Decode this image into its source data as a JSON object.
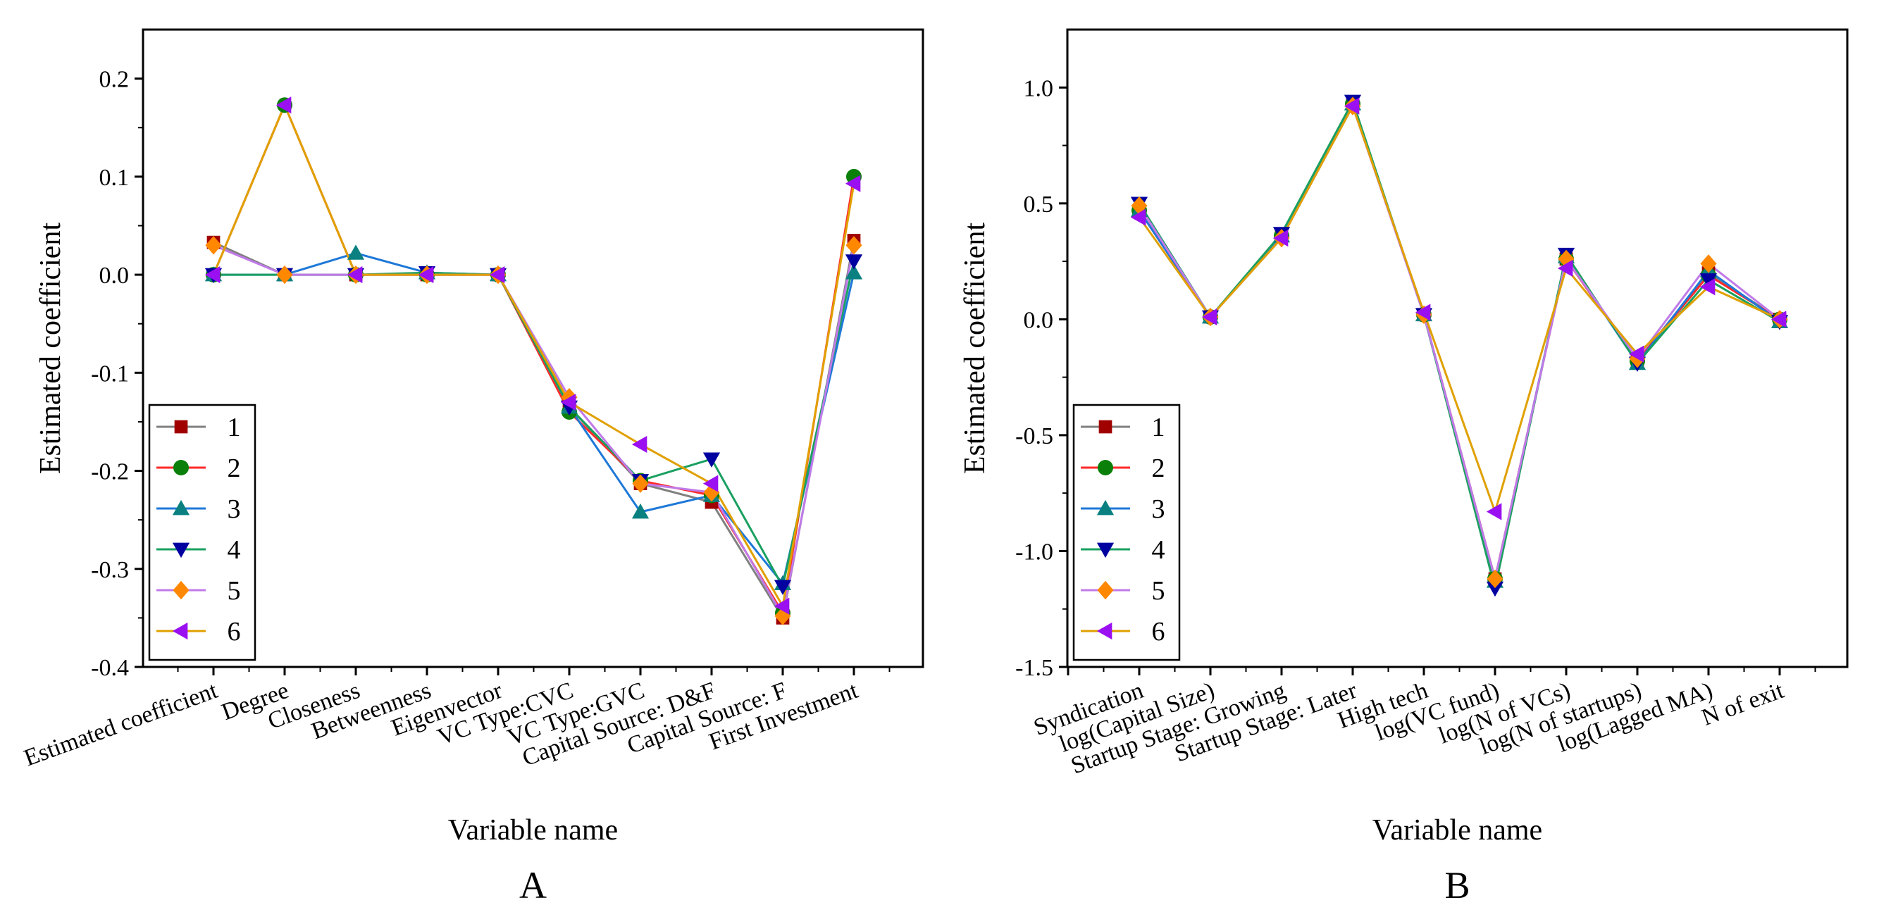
{
  "chart_data": [
    {
      "panel_label": "A",
      "type": "line",
      "xlabel": "Variable name",
      "ylabel": "Estimated coefficient",
      "ylim": [
        -0.4,
        0.25
      ],
      "yticks": [
        -0.4,
        -0.3,
        -0.2,
        -0.1,
        0.0,
        0.1,
        0.2
      ],
      "ytick_labels": [
        "-0.4",
        "-0.3",
        "-0.2",
        "-0.1",
        "0.0",
        "0.1",
        "0.2"
      ],
      "categories": [
        "Estimated coefficient",
        "Degree",
        "Closeness",
        "Betweenness",
        "Eigenvector",
        "VC Type:CVC",
        "VC Type:GVC",
        "Capital Source: D&F",
        "Capital Source: F",
        "First Investment"
      ],
      "series": [
        {
          "name": "1",
          "values": [
            0.033,
            0.0,
            0.0,
            0.0,
            0.0,
            -0.135,
            -0.213,
            -0.232,
            -0.35,
            0.035
          ]
        },
        {
          "name": "2",
          "values": [
            0.0,
            0.173,
            0.0,
            0.0,
            0.0,
            -0.14,
            -0.21,
            -0.225,
            -0.345,
            0.1
          ]
        },
        {
          "name": "3",
          "values": [
            0.0,
            0.0,
            0.022,
            0.002,
            0.0,
            -0.135,
            -0.242,
            -0.225,
            -0.315,
            0.002
          ]
        },
        {
          "name": "4",
          "values": [
            0.0,
            0.0,
            0.0,
            0.002,
            0.0,
            -0.135,
            -0.21,
            -0.188,
            -0.318,
            0.014
          ]
        },
        {
          "name": "5",
          "values": [
            0.03,
            0.0,
            0.0,
            0.0,
            0.0,
            -0.125,
            -0.213,
            -0.222,
            -0.348,
            0.03
          ]
        },
        {
          "name": "6",
          "values": [
            0.0,
            0.173,
            0.0,
            0.0,
            0.0,
            -0.13,
            -0.173,
            -0.213,
            -0.338,
            0.093
          ]
        }
      ],
      "legend": "bottom-left"
    },
    {
      "panel_label": "B",
      "type": "line",
      "xlabel": "Variable name",
      "ylabel": "Estimated coefficient",
      "ylim": [
        -1.5,
        1.25
      ],
      "yticks": [
        -1.5,
        -1.0,
        -0.5,
        0.0,
        0.5,
        1.0
      ],
      "ytick_labels": [
        "-1.5",
        "-1.0",
        "-0.5",
        "0.0",
        "0.5",
        "1.0"
      ],
      "categories": [
        "Syndication",
        "log(Capital Size)",
        "Startup Stage: Growing",
        "Startup Stage: Later",
        "High tech",
        "log(VC fund)",
        "log(N of VCs)",
        "log(N of startups)",
        "log(Lagged MA)",
        "N of exit"
      ],
      "series": [
        {
          "name": "1",
          "values": [
            0.47,
            0.01,
            0.36,
            0.93,
            0.02,
            -1.12,
            0.26,
            -0.18,
            0.2,
            0.0
          ]
        },
        {
          "name": "2",
          "values": [
            0.47,
            0.01,
            0.36,
            0.93,
            0.02,
            -1.12,
            0.26,
            -0.18,
            0.19,
            0.0
          ]
        },
        {
          "name": "3",
          "values": [
            0.47,
            0.01,
            0.36,
            0.93,
            0.02,
            -1.13,
            0.27,
            -0.19,
            0.21,
            -0.01
          ]
        },
        {
          "name": "4",
          "values": [
            0.5,
            0.01,
            0.37,
            0.94,
            0.02,
            -1.16,
            0.28,
            -0.19,
            0.17,
            -0.01
          ]
        },
        {
          "name": "5",
          "values": [
            0.49,
            0.01,
            0.35,
            0.92,
            0.02,
            -1.12,
            0.26,
            -0.17,
            0.24,
            0.0
          ]
        },
        {
          "name": "6",
          "values": [
            0.44,
            0.01,
            0.35,
            0.92,
            0.03,
            -0.83,
            0.22,
            -0.15,
            0.14,
            0.0
          ]
        }
      ],
      "legend": "bottom-left"
    }
  ],
  "series_styles": [
    {
      "name": "1",
      "line_color": "#808080",
      "marker_color": "#a00000",
      "marker": "square"
    },
    {
      "name": "2",
      "line_color": "#ff2a2a",
      "marker_color": "#0a800a",
      "marker": "circle"
    },
    {
      "name": "3",
      "line_color": "#1e78d8",
      "marker_color": "#0a8080",
      "marker": "triangle-up"
    },
    {
      "name": "4",
      "line_color": "#1aa060",
      "marker_color": "#0000a0",
      "marker": "triangle-down"
    },
    {
      "name": "5",
      "line_color": "#c07ae8",
      "marker_color": "#ff8800",
      "marker": "diamond"
    },
    {
      "name": "6",
      "line_color": "#e0a000",
      "marker_color": "#9a10f0",
      "marker": "triangle-left"
    }
  ]
}
